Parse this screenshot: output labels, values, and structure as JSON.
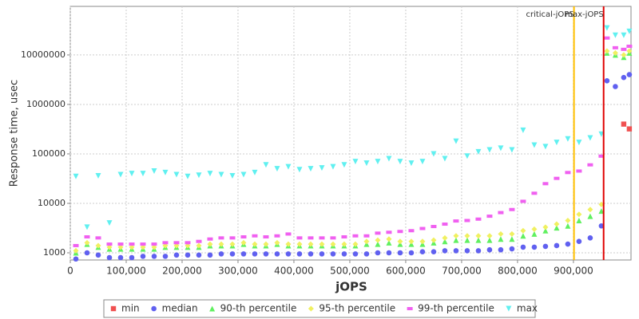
{
  "chart_data": {
    "type": "scatter",
    "x_label": "jOPS",
    "y_label": "Response time, usec",
    "log_y": true,
    "grid": true,
    "xlim": [
      0,
      1003000
    ],
    "ylim": [
      716,
      96000000
    ],
    "xticks": [
      0,
      {
        "value": 100000,
        "label": "100,000"
      },
      {
        "value": 200000,
        "label": "200,000"
      },
      {
        "value": 300000,
        "label": "300,000"
      },
      {
        "value": 400000,
        "label": "400,000"
      },
      {
        "value": 500000,
        "label": "500,000"
      },
      {
        "value": 600000,
        "label": "600,000"
      },
      {
        "value": 700000,
        "label": "700,000"
      },
      {
        "value": 800000,
        "label": "800,000"
      },
      {
        "value": 900000,
        "label": "900,000"
      }
    ],
    "yticks": [
      1000,
      10000,
      100000,
      1000000,
      10000000
    ],
    "markers": [
      {
        "label": "critical-jOPS",
        "value": 901000,
        "color": "#ffc000"
      },
      {
        "label": "max-jOPS",
        "value": 954000,
        "color": "#e00000"
      }
    ],
    "x": [
      10000,
      30000,
      50000,
      70000,
      90000,
      110000,
      130000,
      150000,
      170000,
      190000,
      210000,
      230000,
      250000,
      270000,
      290000,
      310000,
      330000,
      350000,
      370000,
      390000,
      410000,
      430000,
      450000,
      470000,
      490000,
      510000,
      530000,
      550000,
      570000,
      590000,
      610000,
      630000,
      650000,
      670000,
      690000,
      710000,
      730000,
      750000,
      770000,
      790000,
      810000,
      830000,
      850000,
      870000,
      890000,
      910000,
      930000,
      950000,
      960000,
      975000,
      990000,
      1000000
    ],
    "series": [
      {
        "name": "min",
        "color": "#f05050",
        "values": [
          null,
          null,
          null,
          null,
          null,
          null,
          null,
          null,
          null,
          null,
          null,
          null,
          null,
          null,
          null,
          null,
          null,
          null,
          null,
          null,
          null,
          null,
          null,
          null,
          null,
          null,
          null,
          null,
          null,
          null,
          null,
          null,
          null,
          null,
          null,
          null,
          null,
          null,
          null,
          null,
          null,
          null,
          null,
          null,
          null,
          null,
          null,
          null,
          null,
          null,
          400000,
          320000
        ]
      },
      {
        "name": "median",
        "color": "#6060f0",
        "values": [
          750,
          1000,
          900,
          800,
          800,
          800,
          850,
          850,
          850,
          900,
          900,
          900,
          900,
          950,
          950,
          950,
          950,
          950,
          950,
          950,
          950,
          950,
          950,
          950,
          950,
          950,
          950,
          1000,
          1000,
          1000,
          1000,
          1050,
          1050,
          1100,
          1100,
          1100,
          1100,
          1150,
          1150,
          1200,
          1300,
          1300,
          1350,
          1400,
          1500,
          1700,
          2000,
          3500,
          3000000,
          2300000,
          3500000,
          4000000
        ]
      },
      {
        "name": "90-th percentile",
        "color": "#60f060",
        "values": [
          1000,
          1500,
          1300,
          1200,
          1200,
          1200,
          1200,
          1200,
          1300,
          1300,
          1300,
          1300,
          1400,
          1400,
          1400,
          1500,
          1400,
          1400,
          1500,
          1400,
          1400,
          1400,
          1400,
          1400,
          1400,
          1400,
          1500,
          1500,
          1600,
          1500,
          1500,
          1500,
          1600,
          1700,
          1800,
          1800,
          1800,
          1800,
          1900,
          1900,
          2200,
          2400,
          2800,
          3200,
          3500,
          4500,
          5500,
          7000,
          11000000,
          10000000,
          9000000,
          11000000
        ]
      },
      {
        "name": "95-th percentile",
        "color": "#f0f060",
        "values": [
          1100,
          1600,
          1400,
          1300,
          1300,
          1300,
          1300,
          1300,
          1400,
          1400,
          1400,
          1400,
          1500,
          1500,
          1500,
          1600,
          1500,
          1500,
          1600,
          1500,
          1500,
          1500,
          1500,
          1500,
          1500,
          1500,
          1700,
          1800,
          1900,
          1700,
          1700,
          1700,
          1800,
          2000,
          2200,
          2200,
          2200,
          2200,
          2400,
          2400,
          2800,
          3000,
          3300,
          3800,
          4500,
          6000,
          7500,
          9500,
          12000000,
          11000000,
          10000000,
          12000000
        ]
      },
      {
        "name": "99-th percentile",
        "color": "#f060f0",
        "values": [
          1400,
          2100,
          2000,
          1500,
          1500,
          1500,
          1500,
          1500,
          1600,
          1600,
          1600,
          1700,
          1900,
          2000,
          2000,
          2100,
          2200,
          2100,
          2200,
          2400,
          2000,
          2000,
          2000,
          2000,
          2100,
          2200,
          2200,
          2500,
          2600,
          2700,
          2800,
          3100,
          3400,
          3800,
          4400,
          4500,
          4800,
          5500,
          6500,
          7500,
          11000,
          16000,
          25000,
          32000,
          42000,
          45000,
          60000,
          90000,
          22000000,
          14000000,
          13000000,
          15000000
        ]
      },
      {
        "name": "max",
        "color": "#60f0f0",
        "values": [
          35000,
          3300,
          36000,
          4000,
          38000,
          40000,
          40000,
          45000,
          42000,
          38000,
          35000,
          37000,
          40000,
          38000,
          36000,
          38000,
          42000,
          60000,
          50000,
          55000,
          48000,
          50000,
          52000,
          55000,
          60000,
          70000,
          65000,
          70000,
          80000,
          70000,
          65000,
          70000,
          100000,
          80000,
          180000,
          90000,
          110000,
          120000,
          130000,
          120000,
          300000,
          150000,
          140000,
          170000,
          200000,
          170000,
          210000,
          250000,
          35000000,
          25000000,
          25000000,
          30000000
        ]
      }
    ]
  }
}
